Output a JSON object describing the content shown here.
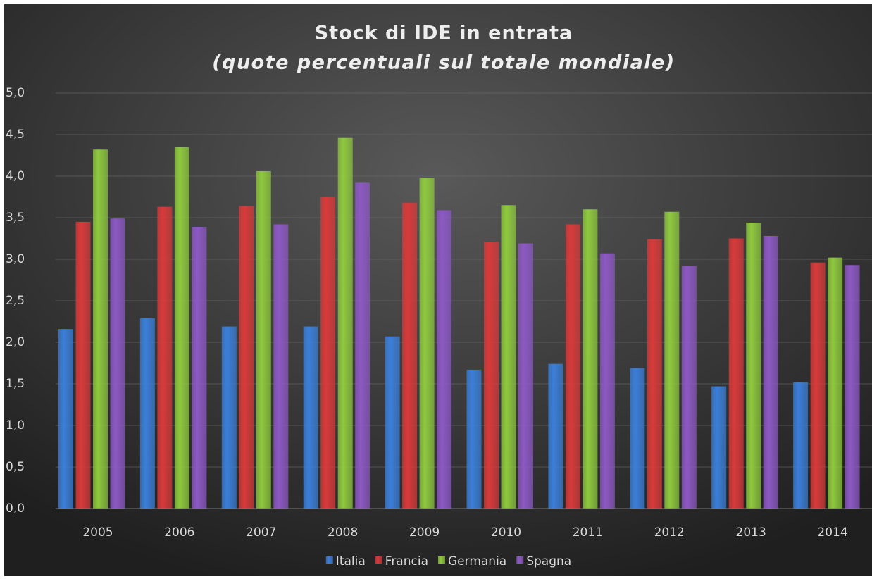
{
  "chart_data": {
    "type": "bar",
    "title": "Stock di IDE in entrata",
    "subtitle": "(quote percentuali sul totale mondiale)",
    "categories": [
      "2005",
      "2006",
      "2007",
      "2008",
      "2009",
      "2010",
      "2011",
      "2012",
      "2013",
      "2014"
    ],
    "series": [
      {
        "name": "Italia",
        "color": "#3b7fd9",
        "values": [
          2.16,
          2.29,
          2.19,
          2.19,
          2.07,
          1.67,
          1.74,
          1.69,
          1.47,
          1.52
        ]
      },
      {
        "name": "Francia",
        "color": "#d93a3a",
        "values": [
          3.45,
          3.63,
          3.64,
          3.75,
          3.68,
          3.21,
          3.42,
          3.24,
          3.25,
          2.96
        ]
      },
      {
        "name": "Germania",
        "color": "#8fc93e",
        "values": [
          4.32,
          4.35,
          4.06,
          4.46,
          3.98,
          3.65,
          3.6,
          3.57,
          3.44,
          3.02
        ]
      },
      {
        "name": "Spagna",
        "color": "#8d59c4",
        "values": [
          3.49,
          3.39,
          3.42,
          3.92,
          3.59,
          3.19,
          3.07,
          2.92,
          3.28,
          2.93
        ]
      }
    ],
    "ylim": [
      0,
      5
    ],
    "yticks": [
      {
        "value": 0,
        "label": "0,0"
      },
      {
        "value": 0.5,
        "label": "0,5"
      },
      {
        "value": 1,
        "label": "1,0"
      },
      {
        "value": 1.5,
        "label": "1,5"
      },
      {
        "value": 2,
        "label": "2,0"
      },
      {
        "value": 2.5,
        "label": "2,5"
      },
      {
        "value": 3,
        "label": "3,0"
      },
      {
        "value": 3.5,
        "label": "3,5"
      },
      {
        "value": 4,
        "label": "4,0"
      },
      {
        "value": 4.5,
        "label": "4,5"
      },
      {
        "value": 5,
        "label": "5,0"
      }
    ],
    "grid": true,
    "legend": "bottom"
  }
}
